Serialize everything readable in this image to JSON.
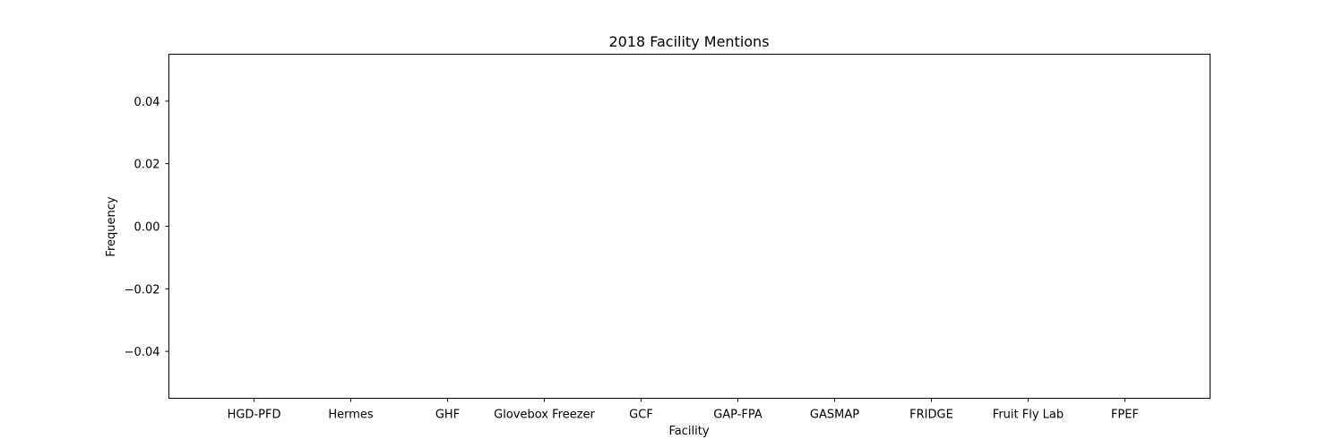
{
  "chart_data": {
    "type": "bar",
    "title": "2018 Facility Mentions",
    "xlabel": "Facility",
    "ylabel": "Frequency",
    "categories": [
      "HGD-PFD",
      "Hermes",
      "GHF",
      "Glovebox Freezer",
      "GCF",
      "GAP-FPA",
      "GASMAP",
      "FRIDGE",
      "Fruit Fly Lab",
      "FPEF"
    ],
    "values": [
      0,
      0,
      0,
      0,
      0,
      0,
      0,
      0,
      0,
      0
    ],
    "ylim": [
      -0.055,
      0.055
    ],
    "yticks": [
      -0.04,
      -0.02,
      0.0,
      0.02,
      0.04
    ],
    "ytick_labels": [
      "−0.04",
      "−0.02",
      "0.00",
      "0.02",
      "0.04"
    ],
    "grid": false,
    "colors": {
      "bar": "#1f77b4",
      "axis": "#000000",
      "background": "#ffffff"
    }
  }
}
